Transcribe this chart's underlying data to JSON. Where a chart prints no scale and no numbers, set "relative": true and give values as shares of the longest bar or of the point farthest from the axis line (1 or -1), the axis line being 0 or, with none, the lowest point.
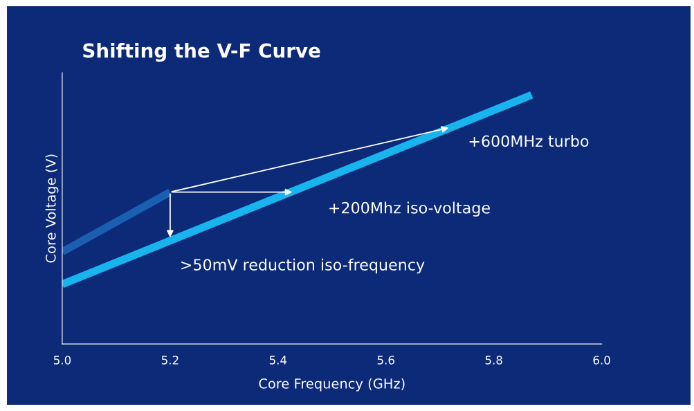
{
  "chart_data": {
    "type": "line",
    "title": "Shifting the V-F Curve",
    "xlabel": "Core Frequency (GHz)",
    "ylabel": "Core Voltage (V)",
    "relative": true,
    "tick_labels": "x",
    "grid": false,
    "legend": false,
    "xlim": [
      5.0,
      6.0
    ],
    "xticks": [
      {
        "value": 5.0,
        "label": "5.0"
      },
      {
        "value": 5.2,
        "label": "5.2"
      },
      {
        "value": 5.4,
        "label": "5.4"
      },
      {
        "value": 5.6,
        "label": "5.6"
      },
      {
        "value": 5.8,
        "label": "5.8"
      },
      {
        "value": 6.0,
        "label": "6.0"
      }
    ],
    "series": [
      {
        "color": "#1a5fb0",
        "x": [
          5.0,
          5.2
        ],
        "values": [
          0.37,
          0.61
        ]
      },
      {
        "color": "#18b4ee",
        "x": [
          5.0,
          5.87
        ],
        "values": [
          0.24,
          1.0
        ]
      }
    ],
    "annotations": [
      {
        "text": "+600MHz turbo",
        "x": 5.72,
        "y": 0.87
      },
      {
        "text": "+200Mhz iso-voltage",
        "x": 5.43,
        "y": 0.61
      },
      {
        "text": ">50mV reduction iso-frequency",
        "x": 5.2,
        "y": 0.42
      }
    ]
  }
}
